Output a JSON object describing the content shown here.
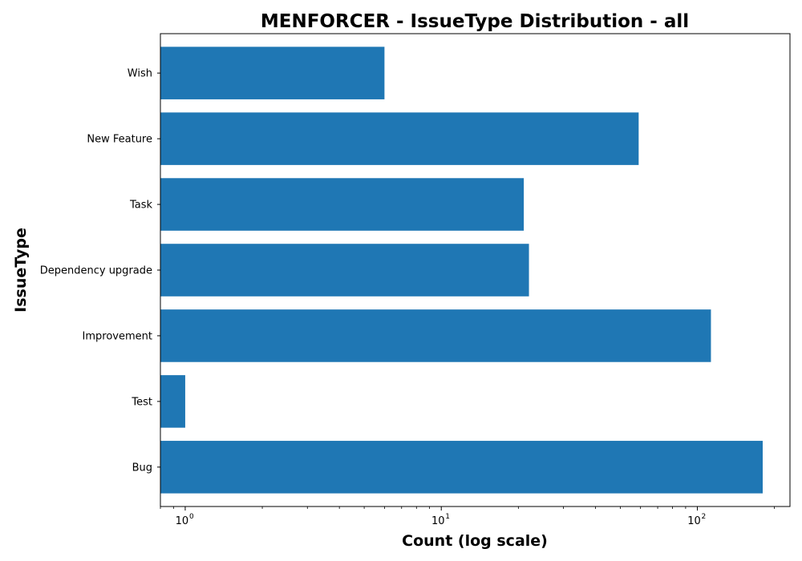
{
  "chart_data": {
    "type": "bar",
    "orientation": "horizontal",
    "title": "MENFORCER - IssueType Distribution - all",
    "xlabel": "Count (log scale)",
    "ylabel": "IssueType",
    "xscale": "log",
    "xlim": [
      0.8,
      230
    ],
    "xticks": [
      {
        "value": 1,
        "base": "10",
        "exp": "0"
      },
      {
        "value": 10,
        "base": "10",
        "exp": "1"
      },
      {
        "value": 100,
        "base": "10",
        "exp": "2"
      }
    ],
    "categories": [
      "Bug",
      "Test",
      "Improvement",
      "Dependency upgrade",
      "Task",
      "New Feature",
      "Wish"
    ],
    "values": [
      180,
      1,
      113,
      22,
      21,
      59,
      6
    ],
    "grid": false,
    "color": "#1f77b4"
  }
}
